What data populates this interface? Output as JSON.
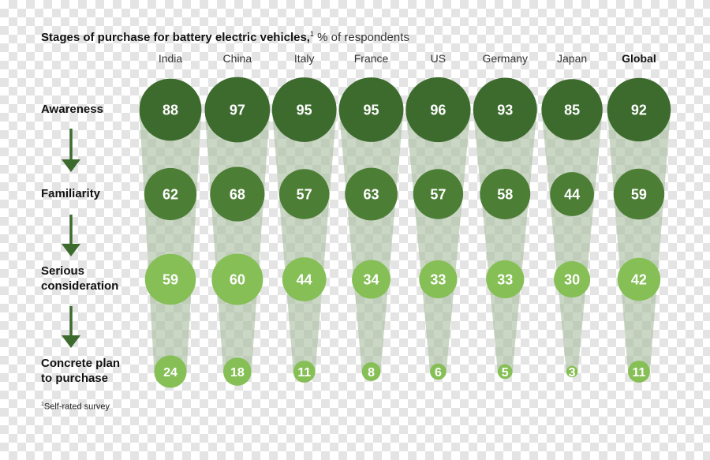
{
  "title": {
    "main": "Stages of purchase for battery electric vehicles,",
    "footnote_marker": "1",
    "unit": "% of respondents"
  },
  "footnote": {
    "marker": "1",
    "text": "Self-rated survey"
  },
  "colors": {
    "awareness": "#3d6b2e",
    "familiarity": "#4d7e36",
    "serious_consideration": "#85bf55",
    "concrete_plan": "#85bf55",
    "funnel": "#a9bfa0",
    "arrow": "#3d6b2e",
    "bubble_text": "#ffffff"
  },
  "chart_data": {
    "type": "bubble-funnel",
    "title": "Stages of purchase for battery electric vehicles, % of respondents",
    "categories": [
      "India",
      "China",
      "Italy",
      "France",
      "US",
      "Germany",
      "Japan",
      "Global"
    ],
    "highlight_category": "Global",
    "stages": [
      {
        "name": "Awareness",
        "lines": [
          "Awareness"
        ],
        "values": [
          88,
          97,
          95,
          95,
          96,
          93,
          85,
          92
        ]
      },
      {
        "name": "Familiarity",
        "lines": [
          "Familiarity"
        ],
        "values": [
          62,
          68,
          57,
          63,
          57,
          58,
          44,
          59
        ]
      },
      {
        "name": "Serious consideration",
        "lines": [
          "Serious",
          "consideration"
        ],
        "values": [
          59,
          60,
          44,
          34,
          33,
          33,
          30,
          42
        ]
      },
      {
        "name": "Concrete plan to purchase",
        "lines": [
          "Concrete plan",
          "to purchase"
        ],
        "values": [
          24,
          18,
          11,
          8,
          6,
          5,
          3,
          11
        ]
      }
    ]
  }
}
